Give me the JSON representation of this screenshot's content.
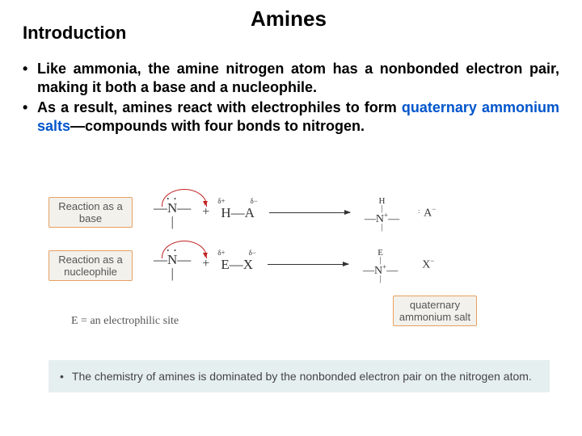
{
  "title": "Amines",
  "subtitle": "Introduction",
  "bullet1_a": "Like ammonia, the amine nitrogen atom has a nonbonded electron pair, making it both a base and a nucleophile.",
  "bullet2_a": "As a result, amines react with electrophiles to form ",
  "bullet2_b": "quaternary ammonium salts",
  "bullet2_c": "—compounds with four bonds to nitrogen.",
  "labelBox1": "Reaction as a base",
  "labelBox2": "Reaction as a nucleophile",
  "labelBox3": "quaternary ammonium salt",
  "footnote": "E = an electrophilic site",
  "summary": "The chemistry of amines is dominated by the nonbonded electron pair on the nitrogen atom.",
  "row1": {
    "reactantN": "N",
    "deltaPlus": "δ+",
    "deltaMinus": "δ−",
    "reactant2a": "H",
    "reactant2b": "A",
    "productN": "N",
    "productTop": "H",
    "anion": "A",
    "anionCharge": "−"
  },
  "row2": {
    "reactantN": "N",
    "deltaPlus": "δ+",
    "deltaMinus": "δ−",
    "reactant2a": "E",
    "reactant2b": "X",
    "productN": "N",
    "productTop": "E",
    "anion": "X",
    "anionCharge": "−"
  },
  "colors": {
    "highlight": "#0055cc",
    "curveArrow": "#c02020",
    "boxBorder": "#e7a060",
    "boxBg": "#f3f1ec",
    "summaryBg": "#e6eff0"
  }
}
